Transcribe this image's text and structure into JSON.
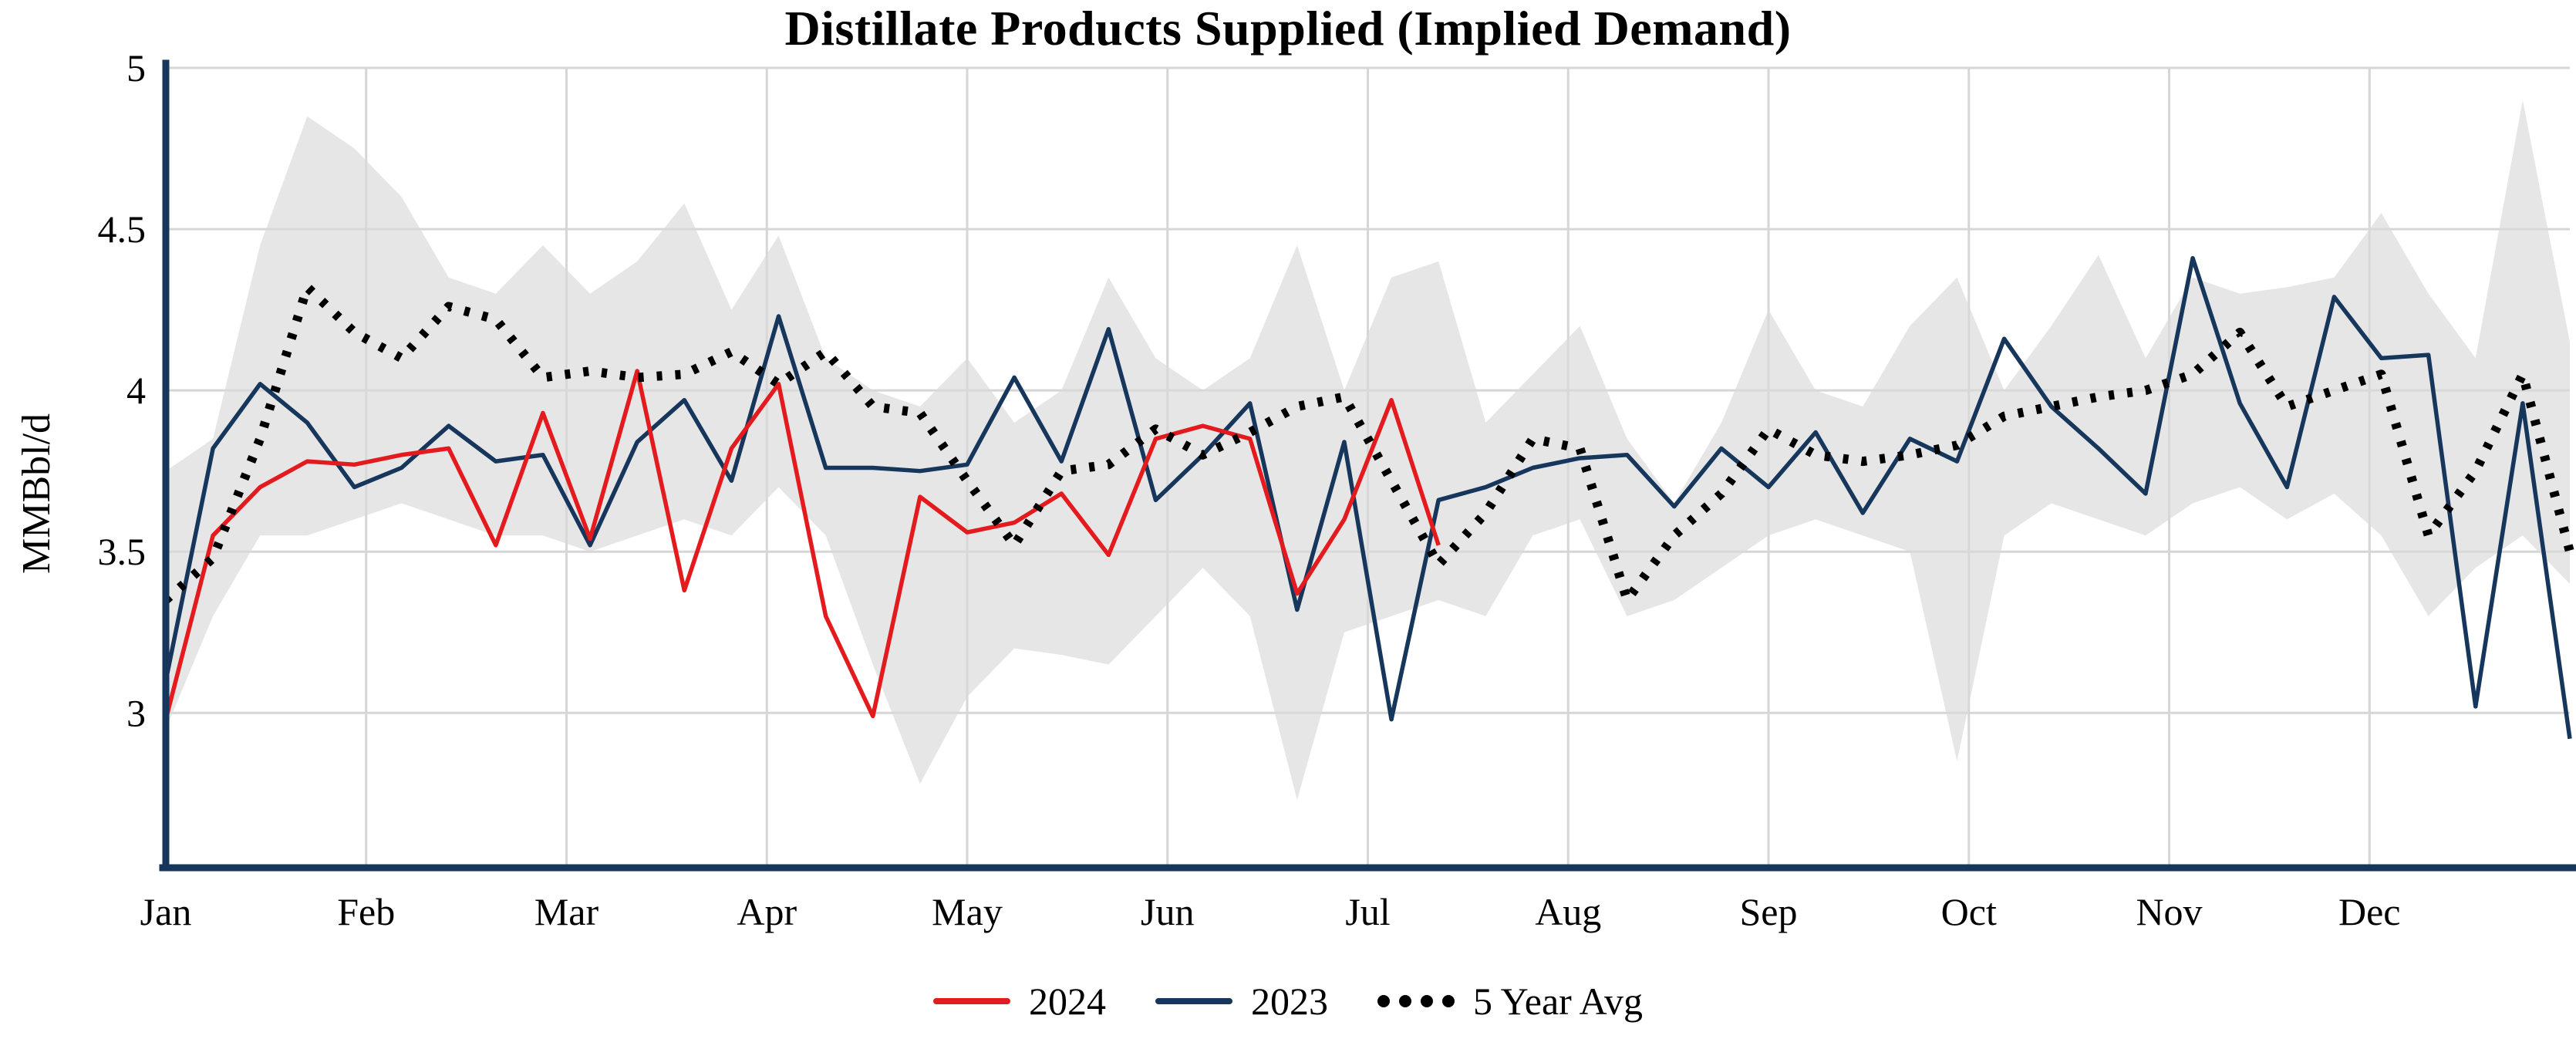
{
  "chart_data": {
    "type": "line",
    "title": "Distillate Products Supplied (Implied Demand)",
    "ylabel": "MMBbl/d",
    "xlabel": "",
    "ylim": [
      2.52,
      5.0
    ],
    "yticks": [
      3,
      3.5,
      4,
      4.5,
      5
    ],
    "x_unit": "week-of-year",
    "weeks": 52,
    "month_labels": [
      "Jan",
      "Feb",
      "Mar",
      "Apr",
      "May",
      "Jun",
      "Jul",
      "Aug",
      "Sep",
      "Oct",
      "Nov",
      "Dec"
    ],
    "grid": true,
    "legend_position": "bottom",
    "axis_color": "#16365c",
    "grid_color": "#d6d6d6",
    "series": [
      {
        "name": "2024",
        "color": "#e41b1e",
        "style": "solid",
        "values": [
          2.98,
          3.55,
          3.7,
          3.78,
          3.77,
          3.8,
          3.82,
          3.52,
          3.93,
          3.54,
          4.06,
          3.38,
          3.82,
          4.02,
          3.3,
          2.99,
          3.67,
          3.56,
          3.59,
          3.68,
          3.49,
          3.85,
          3.89,
          3.85,
          3.37,
          3.6,
          3.97,
          3.52
        ]
      },
      {
        "name": "2023",
        "color": "#16365c",
        "style": "solid",
        "values": [
          3.1,
          3.82,
          4.02,
          3.9,
          3.7,
          3.76,
          3.89,
          3.78,
          3.8,
          3.52,
          3.84,
          3.97,
          3.72,
          4.23,
          3.76,
          3.76,
          3.75,
          3.77,
          4.04,
          3.78,
          4.19,
          3.66,
          3.8,
          3.96,
          3.32,
          3.84,
          2.98,
          3.66,
          3.7,
          3.76,
          3.79,
          3.8,
          3.64,
          3.82,
          3.7,
          3.87,
          3.62,
          3.85,
          3.78,
          4.16,
          3.95,
          3.82,
          3.68,
          4.41,
          3.96,
          3.7,
          4.29,
          4.1,
          4.11,
          3.02,
          3.96,
          2.92
        ]
      },
      {
        "name": "5 Year Avg",
        "color": "#000000",
        "style": "dotted",
        "values": [
          3.35,
          3.48,
          3.85,
          4.32,
          4.18,
          4.1,
          4.26,
          4.22,
          4.04,
          4.06,
          4.04,
          4.05,
          4.12,
          4.02,
          4.12,
          3.95,
          3.93,
          3.72,
          3.52,
          3.75,
          3.77,
          3.88,
          3.8,
          3.87,
          3.95,
          3.98,
          3.72,
          3.46,
          3.62,
          3.85,
          3.82,
          3.35,
          3.55,
          3.68,
          3.88,
          3.8,
          3.78,
          3.8,
          3.83,
          3.92,
          3.95,
          3.98,
          4.0,
          4.05,
          4.18,
          3.95,
          4.0,
          4.05,
          3.55,
          3.75,
          4.05,
          3.5
        ]
      }
    ],
    "band": {
      "color": "#d9d9d9",
      "max": [
        3.75,
        3.85,
        4.45,
        4.85,
        4.75,
        4.6,
        4.35,
        4.3,
        4.45,
        4.3,
        4.4,
        4.58,
        4.25,
        4.48,
        4.1,
        4.0,
        3.95,
        4.1,
        3.9,
        4.0,
        4.35,
        4.1,
        4.0,
        4.1,
        4.45,
        4.0,
        4.35,
        4.4,
        3.9,
        4.05,
        4.2,
        3.85,
        3.65,
        3.9,
        4.25,
        4.0,
        3.95,
        4.2,
        4.35,
        4.0,
        4.2,
        4.42,
        4.1,
        4.35,
        4.3,
        4.32,
        4.35,
        4.55,
        4.3,
        4.1,
        4.9,
        4.15
      ],
      "min": [
        2.95,
        3.3,
        3.55,
        3.55,
        3.6,
        3.65,
        3.6,
        3.55,
        3.55,
        3.5,
        3.55,
        3.6,
        3.55,
        3.7,
        3.55,
        3.15,
        2.78,
        3.05,
        3.2,
        3.18,
        3.15,
        3.3,
        3.45,
        3.3,
        2.73,
        3.25,
        3.3,
        3.35,
        3.3,
        3.55,
        3.6,
        3.3,
        3.35,
        3.45,
        3.55,
        3.6,
        3.55,
        3.5,
        2.85,
        3.55,
        3.65,
        3.6,
        3.55,
        3.65,
        3.7,
        3.6,
        3.68,
        3.55,
        3.3,
        3.45,
        3.55,
        3.4
      ]
    }
  }
}
